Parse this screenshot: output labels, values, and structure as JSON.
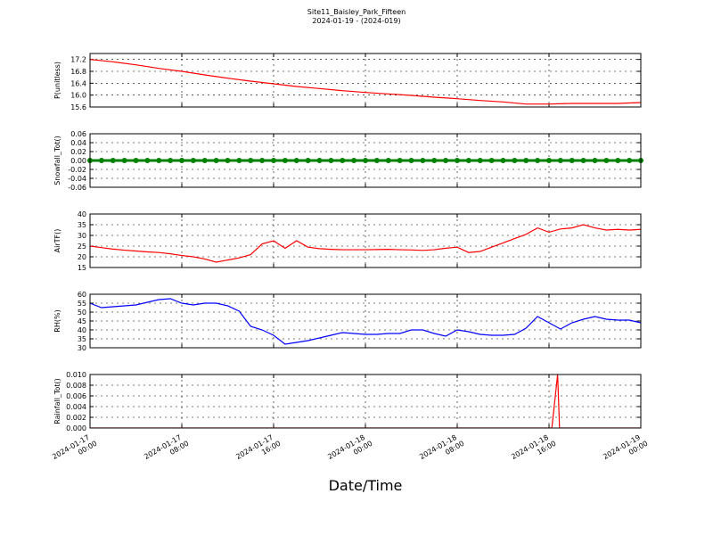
{
  "title": "Site11_Baisley_Park_Fifteen",
  "subtitle": "2024-01-19 - (2024-019)",
  "x_axis": {
    "label": "Date/Time",
    "xlim": [
      "2024-01-17T00:00",
      "2024-01-19T00:00"
    ],
    "xticks": [
      {
        "value": "2024-01-17T00:00",
        "label": [
          "2024-01-17",
          "00:00"
        ]
      },
      {
        "value": "2024-01-17T08:00",
        "label": [
          "2024-01-17",
          "08:00"
        ]
      },
      {
        "value": "2024-01-17T16:00",
        "label": [
          "2024-01-17",
          "16:00"
        ]
      },
      {
        "value": "2024-01-18T00:00",
        "label": [
          "2024-01-18",
          "00:00"
        ]
      },
      {
        "value": "2024-01-18T08:00",
        "label": [
          "2024-01-18",
          "08:00"
        ]
      },
      {
        "value": "2024-01-18T16:00",
        "label": [
          "2024-01-18",
          "16:00"
        ]
      },
      {
        "value": "2024-01-19T00:00",
        "label": [
          "2024-01-19",
          "00:00"
        ]
      }
    ]
  },
  "chart_data": [
    {
      "type": "line",
      "ylabel": "P(unitless)",
      "color": "#ff0000",
      "x": [
        "2024-01-17T00:00",
        "2024-01-17T02:00",
        "2024-01-17T04:00",
        "2024-01-17T06:00",
        "2024-01-17T08:00",
        "2024-01-17T10:00",
        "2024-01-17T12:00",
        "2024-01-17T14:00",
        "2024-01-17T16:00",
        "2024-01-17T18:00",
        "2024-01-17T20:00",
        "2024-01-17T22:00",
        "2024-01-18T00:00",
        "2024-01-18T02:00",
        "2024-01-18T04:00",
        "2024-01-18T06:00",
        "2024-01-18T08:00",
        "2024-01-18T10:00",
        "2024-01-18T12:00",
        "2024-01-18T14:00",
        "2024-01-18T16:00",
        "2024-01-18T18:00",
        "2024-01-18T20:00",
        "2024-01-18T22:00",
        "2024-01-19T00:00"
      ],
      "values": [
        17.2,
        17.12,
        17.02,
        16.9,
        16.8,
        16.68,
        16.57,
        16.47,
        16.38,
        16.29,
        16.22,
        16.15,
        16.09,
        16.04,
        15.99,
        15.93,
        15.88,
        15.82,
        15.77,
        15.7,
        15.7,
        15.72,
        15.72,
        15.72,
        15.75
      ],
      "ylim": [
        15.6,
        17.4
      ],
      "yticks": [
        15.6,
        {
          "value": 16.0,
          "label": "16.0"
        },
        16.4,
        16.8,
        17.2
      ]
    },
    {
      "type": "line",
      "ylabel": "Snowfall_Tot()",
      "color": "#008000",
      "markers": true,
      "x": [
        "2024-01-17T00:00",
        "2024-01-17T01:00",
        "2024-01-17T02:00",
        "2024-01-17T03:00",
        "2024-01-17T04:00",
        "2024-01-17T05:00",
        "2024-01-17T06:00",
        "2024-01-17T07:00",
        "2024-01-17T08:00",
        "2024-01-17T09:00",
        "2024-01-17T10:00",
        "2024-01-17T11:00",
        "2024-01-17T12:00",
        "2024-01-17T13:00",
        "2024-01-17T14:00",
        "2024-01-17T15:00",
        "2024-01-17T16:00",
        "2024-01-17T17:00",
        "2024-01-17T18:00",
        "2024-01-17T19:00",
        "2024-01-17T20:00",
        "2024-01-17T21:00",
        "2024-01-17T22:00",
        "2024-01-17T23:00",
        "2024-01-18T00:00",
        "2024-01-18T01:00",
        "2024-01-18T02:00",
        "2024-01-18T03:00",
        "2024-01-18T04:00",
        "2024-01-18T05:00",
        "2024-01-18T06:00",
        "2024-01-18T07:00",
        "2024-01-18T08:00",
        "2024-01-18T09:00",
        "2024-01-18T10:00",
        "2024-01-18T11:00",
        "2024-01-18T12:00",
        "2024-01-18T13:00",
        "2024-01-18T14:00",
        "2024-01-18T15:00",
        "2024-01-18T16:00",
        "2024-01-18T17:00",
        "2024-01-18T18:00",
        "2024-01-18T19:00",
        "2024-01-18T20:00",
        "2024-01-18T21:00",
        "2024-01-18T22:00",
        "2024-01-18T23:00",
        "2024-01-19T00:00"
      ],
      "values": [
        0,
        0,
        0,
        0,
        0,
        0,
        0,
        0,
        0,
        0,
        0,
        0,
        0,
        0,
        0,
        0,
        0,
        0,
        0,
        0,
        0,
        0,
        0,
        0,
        0,
        0,
        0,
        0,
        0,
        0,
        0,
        0,
        0,
        0,
        0,
        0,
        0,
        0,
        0,
        0,
        0,
        0,
        0,
        0,
        0,
        0,
        0,
        0,
        0
      ],
      "ylim": [
        -0.06,
        0.06
      ],
      "yticks": [
        -0.06,
        -0.04,
        -0.02,
        {
          "value": 0,
          "label": "0.00"
        },
        0.02,
        0.04,
        0.06
      ]
    },
    {
      "type": "line",
      "ylabel": "AirTF()",
      "color": "#ff0000",
      "x": [
        "2024-01-17T00:00",
        "2024-01-17T01:00",
        "2024-01-17T02:00",
        "2024-01-17T03:00",
        "2024-01-17T04:00",
        "2024-01-17T05:00",
        "2024-01-17T06:00",
        "2024-01-17T07:00",
        "2024-01-17T08:00",
        "2024-01-17T09:00",
        "2024-01-17T10:00",
        "2024-01-17T11:00",
        "2024-01-17T12:00",
        "2024-01-17T13:00",
        "2024-01-17T14:00",
        "2024-01-17T15:00",
        "2024-01-17T16:00",
        "2024-01-17T17:00",
        "2024-01-17T18:00",
        "2024-01-17T19:00",
        "2024-01-17T20:00",
        "2024-01-17T21:00",
        "2024-01-17T22:00",
        "2024-01-17T23:00",
        "2024-01-18T00:00",
        "2024-01-18T01:00",
        "2024-01-18T02:00",
        "2024-01-18T03:00",
        "2024-01-18T04:00",
        "2024-01-18T05:00",
        "2024-01-18T06:00",
        "2024-01-18T07:00",
        "2024-01-18T08:00",
        "2024-01-18T09:00",
        "2024-01-18T10:00",
        "2024-01-18T11:00",
        "2024-01-18T12:00",
        "2024-01-18T13:00",
        "2024-01-18T14:00",
        "2024-01-18T15:00",
        "2024-01-18T16:00",
        "2024-01-18T17:00",
        "2024-01-18T18:00",
        "2024-01-18T19:00",
        "2024-01-18T20:00",
        "2024-01-18T21:00",
        "2024-01-18T22:00",
        "2024-01-18T23:00",
        "2024-01-19T00:00"
      ],
      "values": [
        25.0,
        24.3,
        23.6,
        23.1,
        22.7,
        22.3,
        22.0,
        21.4,
        20.6,
        20.0,
        19.0,
        17.5,
        18.5,
        19.5,
        21.0,
        26.0,
        27.5,
        24.0,
        27.5,
        24.5,
        23.8,
        23.5,
        23.3,
        23.3,
        23.3,
        23.4,
        23.5,
        23.3,
        23.2,
        23.0,
        23.3,
        24.0,
        24.5,
        22.0,
        22.5,
        24.5,
        26.5,
        28.5,
        30.5,
        33.5,
        31.5,
        33.0,
        33.5,
        35.0,
        33.5,
        32.5,
        32.8,
        32.5,
        32.8
      ],
      "ylim": [
        15,
        40
      ],
      "yticks": [
        15,
        20,
        25,
        30,
        35,
        40
      ]
    },
    {
      "type": "line",
      "ylabel": "RH(%)",
      "color": "#0000ff",
      "x": [
        "2024-01-17T00:00",
        "2024-01-17T01:00",
        "2024-01-17T02:00",
        "2024-01-17T03:00",
        "2024-01-17T04:00",
        "2024-01-17T05:00",
        "2024-01-17T06:00",
        "2024-01-17T07:00",
        "2024-01-17T08:00",
        "2024-01-17T09:00",
        "2024-01-17T10:00",
        "2024-01-17T11:00",
        "2024-01-17T12:00",
        "2024-01-17T13:00",
        "2024-01-17T14:00",
        "2024-01-17T15:00",
        "2024-01-17T16:00",
        "2024-01-17T17:00",
        "2024-01-17T18:00",
        "2024-01-17T19:00",
        "2024-01-17T20:00",
        "2024-01-17T21:00",
        "2024-01-17T22:00",
        "2024-01-17T23:00",
        "2024-01-18T00:00",
        "2024-01-18T01:00",
        "2024-01-18T02:00",
        "2024-01-18T03:00",
        "2024-01-18T04:00",
        "2024-01-18T05:00",
        "2024-01-18T06:00",
        "2024-01-18T07:00",
        "2024-01-18T08:00",
        "2024-01-18T09:00",
        "2024-01-18T10:00",
        "2024-01-18T11:00",
        "2024-01-18T12:00",
        "2024-01-18T13:00",
        "2024-01-18T14:00",
        "2024-01-18T15:00",
        "2024-01-18T16:00",
        "2024-01-18T17:00",
        "2024-01-18T18:00",
        "2024-01-18T19:00",
        "2024-01-18T20:00",
        "2024-01-18T21:00",
        "2024-01-18T22:00",
        "2024-01-18T23:00",
        "2024-01-19T00:00"
      ],
      "values": [
        55,
        52.5,
        53,
        53.5,
        54,
        55.5,
        57,
        57.5,
        55,
        54,
        55,
        55,
        53.5,
        50.5,
        42,
        40,
        37,
        32,
        33,
        34,
        35.5,
        37,
        38.5,
        38,
        37.5,
        37.5,
        38,
        38,
        40,
        40,
        38,
        36.5,
        40,
        39,
        37.5,
        37,
        37,
        37.5,
        41,
        47.5,
        44,
        40.5,
        44,
        46,
        47.5,
        46,
        45.5,
        45.5,
        44
      ],
      "ylim": [
        30,
        60
      ],
      "yticks": [
        30,
        35,
        40,
        45,
        50,
        55,
        60
      ]
    },
    {
      "type": "line",
      "ylabel": "Rainfall_Tot()",
      "color": "#ff0000",
      "x": [
        "2024-01-17T00:00",
        "2024-01-18T16:15",
        "2024-01-18T16:45",
        "2024-01-18T16:55",
        "2024-01-19T00:00"
      ],
      "values": [
        0,
        0,
        0.01,
        0,
        0
      ],
      "ylim": [
        0,
        0.01
      ],
      "yticks": [
        {
          "value": 0,
          "label": "0.000"
        },
        0.002,
        0.004,
        0.006,
        0.008,
        {
          "value": 0.01,
          "label": "0.010"
        }
      ]
    }
  ]
}
